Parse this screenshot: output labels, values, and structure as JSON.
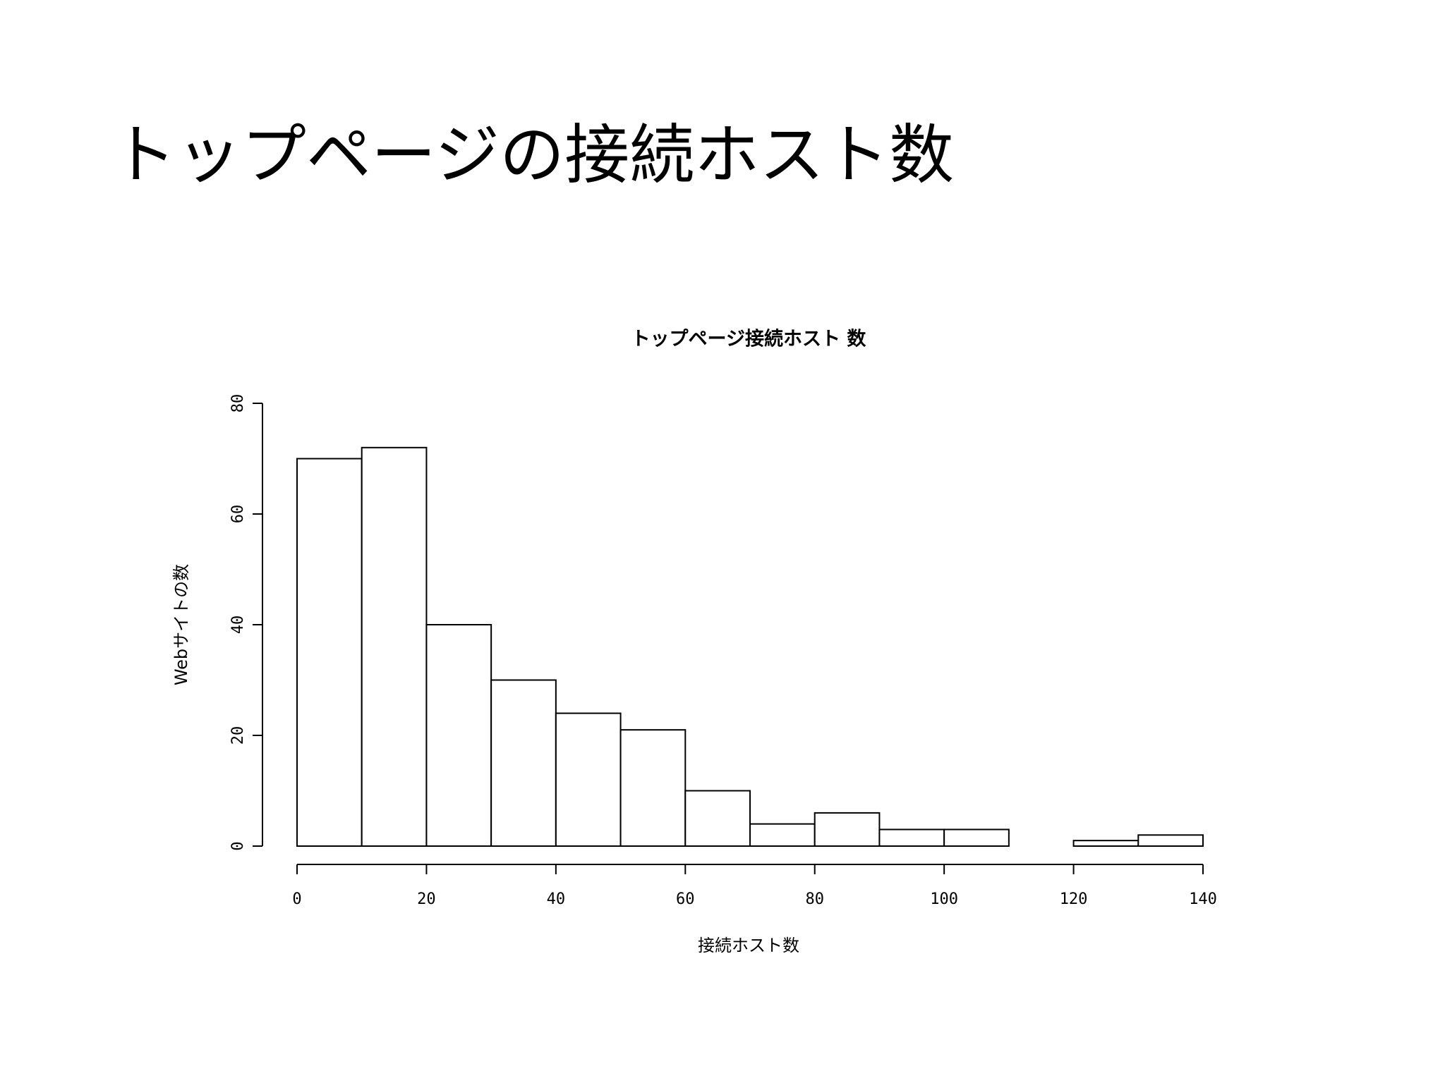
{
  "title": "トップページの接続ホスト数",
  "chart_data": {
    "type": "histogram",
    "title": "トップページ接続ホスト 数",
    "x_label": "接続ホスト数",
    "y_label": "Webサイトの数",
    "bins": [
      0,
      10,
      20,
      30,
      40,
      50,
      60,
      70,
      80,
      90,
      100,
      110,
      120,
      130,
      140
    ],
    "values": [
      70,
      72,
      40,
      30,
      24,
      21,
      10,
      4,
      6,
      3,
      3,
      0,
      1,
      2
    ],
    "color": "#ffffff",
    "xlim": [
      0,
      140
    ],
    "xticks": [
      0,
      20,
      40,
      60,
      80,
      100,
      120,
      140
    ],
    "ylim": [
      0,
      80
    ],
    "yticks": [
      0,
      20,
      40,
      60,
      80
    ]
  }
}
